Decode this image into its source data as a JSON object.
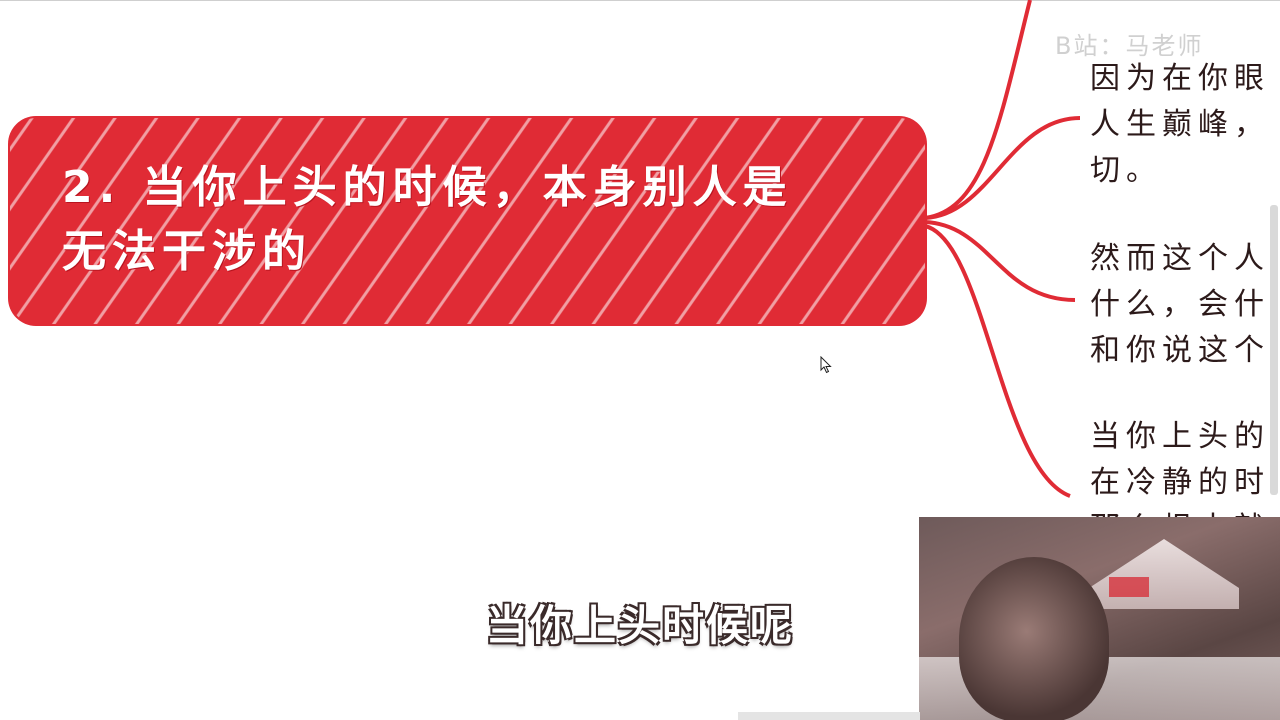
{
  "main_node": {
    "line1": "2. 当你上头的时候，本身别人是",
    "line2": "无法干涉的",
    "color": "#e02b35"
  },
  "watermark": "B站：马老师",
  "children": [
    {
      "lines": [
        "因为在你眼",
        "人生巅峰，",
        "切。"
      ]
    },
    {
      "lines": [
        "然而这个人",
        "什么，会什",
        "和你说这个"
      ]
    },
    {
      "lines": [
        "当你上头的",
        "在冷静的时",
        "那么根本就"
      ]
    }
  ],
  "connector_color": "#e02b35",
  "subtitle": "当你上头时候呢"
}
